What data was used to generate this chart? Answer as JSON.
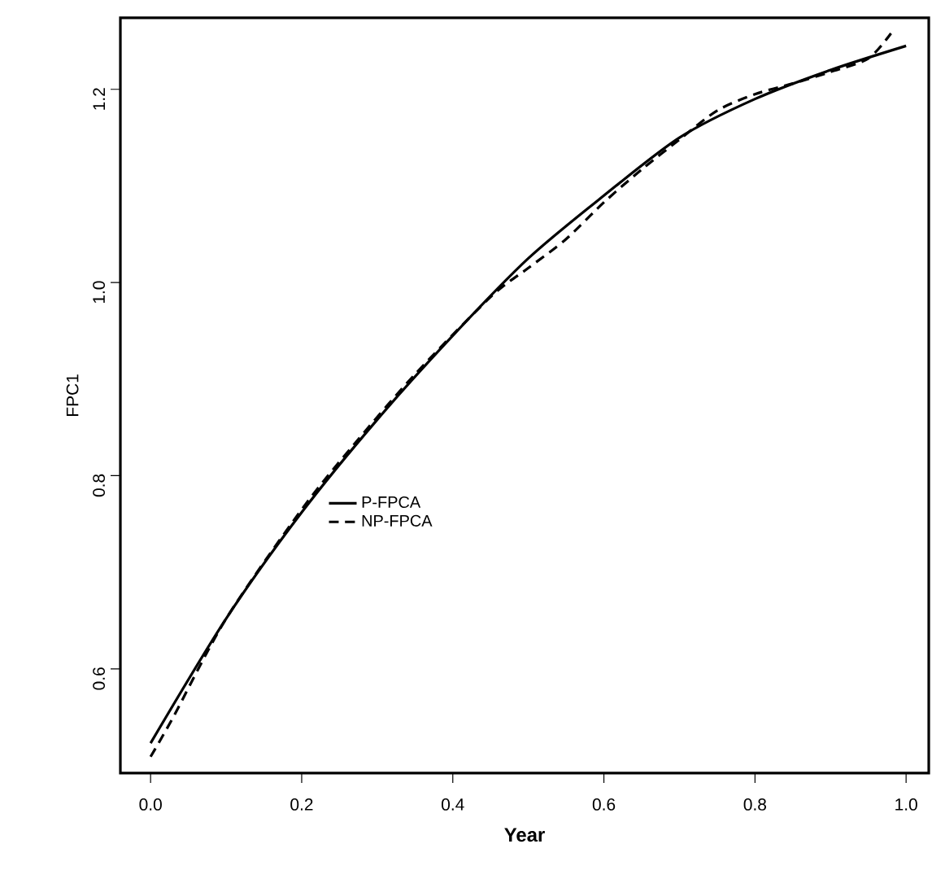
{
  "chart_data": {
    "type": "line",
    "xlabel": "Year",
    "ylabel": "FPC1",
    "xlim": [
      -0.04,
      1.03
    ],
    "ylim": [
      0.492,
      1.274
    ],
    "xticks": [
      {
        "value": 0,
        "label": "0.0"
      },
      0.2,
      0.4,
      0.6,
      0.8,
      {
        "value": 1,
        "label": "1.0"
      }
    ],
    "yticks": [
      0.6,
      0.8,
      {
        "value": 1,
        "label": "1.0"
      },
      1.2
    ],
    "grid": false,
    "legend": "left",
    "marker": "none",
    "series": [
      {
        "name": "P-FPCA",
        "color": "#000000",
        "line_style": "solid",
        "x": [
          0,
          0.1,
          0.2,
          0.3,
          0.4,
          0.5,
          0.6,
          0.7,
          0.8,
          0.9,
          1.0
        ],
        "values": [
          0.523,
          0.652,
          0.762,
          0.858,
          0.945,
          1.025,
          1.09,
          1.15,
          1.19,
          1.22,
          1.245
        ]
      },
      {
        "name": "NP-FPCA",
        "color": "#000000",
        "line_style": "dashed",
        "x": [
          0,
          0.03,
          0.1,
          0.2,
          0.27,
          0.35,
          0.45,
          0.5,
          0.55,
          0.6,
          0.65,
          0.7,
          0.75,
          0.8,
          0.85,
          0.9,
          0.95,
          0.98
        ],
        "values": [
          0.509,
          0.55,
          0.652,
          0.765,
          0.833,
          0.905,
          0.985,
          1.015,
          1.045,
          1.083,
          1.117,
          1.148,
          1.178,
          1.195,
          1.206,
          1.218,
          1.232,
          1.258
        ]
      }
    ]
  }
}
